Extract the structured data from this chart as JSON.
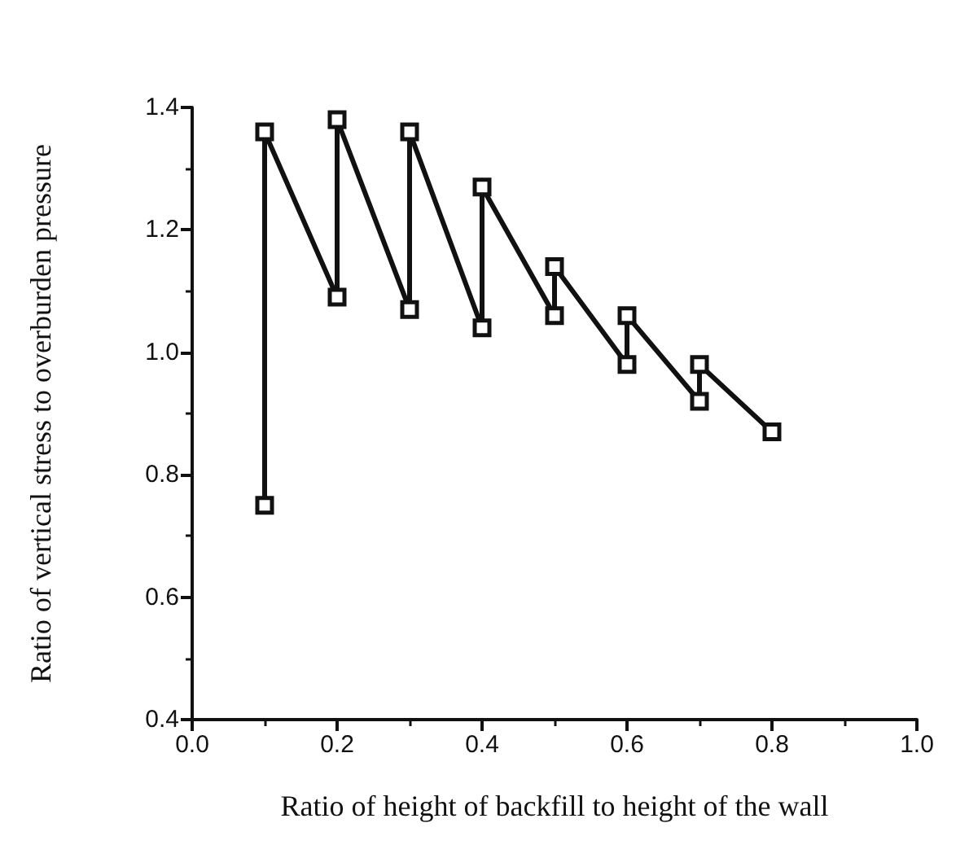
{
  "chart_data": {
    "type": "line",
    "xlabel": "Ratio of height of backfill to height of the wall",
    "ylabel": "Ratio of vertical stress to overburden pressure",
    "x": [
      0.1,
      0.1,
      0.2,
      0.2,
      0.3,
      0.3,
      0.4,
      0.4,
      0.5,
      0.5,
      0.6,
      0.6,
      0.7,
      0.7,
      0.8
    ],
    "series": [
      {
        "color": "#111111",
        "values": [
          0.75,
          1.36,
          1.09,
          1.38,
          1.07,
          1.36,
          1.04,
          1.27,
          1.06,
          1.14,
          0.98,
          1.06,
          0.92,
          0.98,
          0.87
        ]
      }
    ],
    "xlim": [
      0.0,
      1.0
    ],
    "xticks": [
      {
        "value": 0,
        "label": "0.0"
      },
      0.2,
      0.4,
      0.6,
      0.8,
      {
        "value": 1,
        "label": "1.0"
      }
    ],
    "ylim": [
      0.4,
      1.4
    ],
    "yticks": [
      0.4,
      0.6,
      0.8,
      {
        "value": 1,
        "label": "1.0"
      },
      1.2,
      1.4
    ],
    "grid": false,
    "marker": "square",
    "line_style": "solid"
  }
}
